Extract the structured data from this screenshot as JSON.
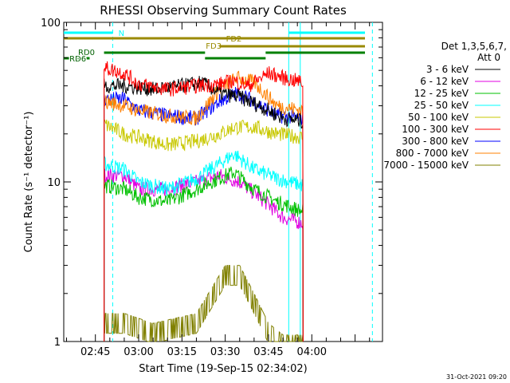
{
  "chart_data": {
    "type": "line",
    "title": "RHESSI Observing Summary Count Rates",
    "xlabel": "Start Time (19-Sep-15 02:34:02)",
    "ylabel": "Count Rate (s⁻¹ detector⁻¹)",
    "y_scale": "log",
    "ylim": [
      1,
      100
    ],
    "xlim": [
      "02:34:02",
      "04:24:30"
    ],
    "y_ticks": [
      {
        "value": 1,
        "label": "1"
      },
      {
        "value": 10,
        "label": "10"
      },
      {
        "value": 100,
        "label": "100"
      }
    ],
    "x_ticks": [
      {
        "time": "02:45",
        "label": "02:45"
      },
      {
        "time": "03:00",
        "label": "03:00"
      },
      {
        "time": "03:15",
        "label": "03:15"
      },
      {
        "time": "03:30",
        "label": "03:30"
      },
      {
        "time": "03:45",
        "label": "03:45"
      },
      {
        "time": "04:00",
        "label": "04:00"
      }
    ],
    "data_start": "02:48",
    "data_end": "03:57",
    "legend_header": [
      "Det 1,3,5,6,7,",
      "Att 0"
    ],
    "legend_position": "right",
    "series": [
      {
        "name": "3 - 6 keV",
        "color": "#000000",
        "points": [
          [
            "02:48",
            40
          ],
          [
            "02:55",
            40
          ],
          [
            "03:05",
            38
          ],
          [
            "03:15",
            40
          ],
          [
            "03:22",
            42
          ],
          [
            "03:28",
            36
          ],
          [
            "03:35",
            34
          ],
          [
            "03:42",
            30
          ],
          [
            "03:50",
            25
          ],
          [
            "03:57",
            24
          ]
        ]
      },
      {
        "name": "6 - 12 keV",
        "color": "#e000e0",
        "points": [
          [
            "02:48",
            11
          ],
          [
            "02:55",
            11
          ],
          [
            "03:00",
            9
          ],
          [
            "03:10",
            9
          ],
          [
            "03:20",
            10
          ],
          [
            "03:28",
            11
          ],
          [
            "03:35",
            10
          ],
          [
            "03:42",
            8
          ],
          [
            "03:50",
            6
          ],
          [
            "03:57",
            5.5
          ]
        ]
      },
      {
        "name": "12 - 25 keV",
        "color": "#00c000",
        "points": [
          [
            "02:48",
            9.5
          ],
          [
            "02:55",
            9
          ],
          [
            "03:00",
            8
          ],
          [
            "03:10",
            7.5
          ],
          [
            "03:20",
            9
          ],
          [
            "03:25",
            10
          ],
          [
            "03:33",
            11.5
          ],
          [
            "03:40",
            9
          ],
          [
            "03:48",
            7.5
          ],
          [
            "03:57",
            6.5
          ]
        ]
      },
      {
        "name": "25 - 50 keV",
        "color": "#00ffff",
        "points": [
          [
            "02:48",
            13
          ],
          [
            "02:55",
            12
          ],
          [
            "03:00",
            10
          ],
          [
            "03:10",
            9
          ],
          [
            "03:20",
            10.5
          ],
          [
            "03:28",
            13
          ],
          [
            "03:33",
            15
          ],
          [
            "03:40",
            12
          ],
          [
            "03:48",
            10.5
          ],
          [
            "03:57",
            9.5
          ]
        ]
      },
      {
        "name": "50 - 100 keV",
        "color": "#c8c800",
        "points": [
          [
            "02:48",
            23
          ],
          [
            "02:55",
            20
          ],
          [
            "03:00",
            19
          ],
          [
            "03:10",
            17
          ],
          [
            "03:20",
            18
          ],
          [
            "03:28",
            20
          ],
          [
            "03:33",
            22
          ],
          [
            "03:40",
            22
          ],
          [
            "03:48",
            20
          ],
          [
            "03:57",
            19
          ]
        ]
      },
      {
        "name": "100 - 300 keV",
        "color": "#ff0000",
        "points": [
          [
            "02:48",
            52
          ],
          [
            "02:55",
            48
          ],
          [
            "03:00",
            41
          ],
          [
            "03:10",
            38
          ],
          [
            "03:20",
            40
          ],
          [
            "03:28",
            41
          ],
          [
            "03:33",
            43
          ],
          [
            "03:38",
            40
          ],
          [
            "03:45",
            48
          ],
          [
            "03:50",
            45
          ],
          [
            "03:57",
            42
          ]
        ]
      },
      {
        "name": "300 - 800 keV",
        "color": "#0000ff",
        "points": [
          [
            "02:48",
            33
          ],
          [
            "02:55",
            33
          ],
          [
            "03:00",
            28
          ],
          [
            "03:10",
            26
          ],
          [
            "03:20",
            25
          ],
          [
            "03:28",
            32
          ],
          [
            "03:34",
            36
          ],
          [
            "03:40",
            32
          ],
          [
            "03:48",
            26
          ],
          [
            "03:57",
            25
          ]
        ]
      },
      {
        "name": "800 - 7000 keV",
        "color": "#ff8000",
        "points": [
          [
            "02:48",
            32
          ],
          [
            "02:55",
            30
          ],
          [
            "03:00",
            28
          ],
          [
            "03:10",
            26
          ],
          [
            "03:20",
            25
          ],
          [
            "03:28",
            38
          ],
          [
            "03:34",
            45
          ],
          [
            "03:40",
            42
          ],
          [
            "03:48",
            30
          ],
          [
            "03:57",
            28
          ]
        ]
      },
      {
        "name": "7000 - 15000 keV",
        "color": "#808000",
        "points": [
          [
            "02:48",
            1.5
          ],
          [
            "02:55",
            1.5
          ],
          [
            "03:05",
            1.3
          ],
          [
            "03:20",
            1.5
          ],
          [
            "03:30",
            3
          ],
          [
            "03:35",
            3
          ],
          [
            "03:40",
            2
          ],
          [
            "03:45",
            1.3
          ],
          [
            "03:50",
            1.1
          ],
          [
            "03:57",
            1.1
          ]
        ]
      }
    ],
    "state_bars": [
      {
        "label": "N",
        "color": "#00ffff",
        "intervals": [
          [
            "02:34:02",
            "02:51"
          ],
          [
            "03:52",
            "04:24:30"
          ]
        ]
      },
      {
        "label": "FD2",
        "color": "#9a8a00",
        "intervals": [
          [
            "02:34:02",
            "04:24:30"
          ]
        ]
      },
      {
        "label": "FD3",
        "color": "#9a8a00",
        "intervals": [
          [
            "03:28",
            "04:24:30"
          ]
        ]
      },
      {
        "label": "RD0",
        "color": "#008000",
        "intervals": [
          [
            "02:48",
            "03:23"
          ],
          [
            "03:44",
            "04:24:30"
          ]
        ]
      },
      {
        "label": "RD6",
        "color": "#008000",
        "intervals": [
          [
            "02:34:02",
            "02:43"
          ],
          [
            "03:23",
            "03:44"
          ]
        ]
      }
    ],
    "vertical_markers": [
      {
        "time": "02:51",
        "color": "#00ffff",
        "style": "dashed"
      },
      {
        "time": "03:52",
        "color": "#00ffff",
        "style": "solid"
      },
      {
        "time": "03:56",
        "color": "#00ffff",
        "style": "solid"
      },
      {
        "time": "04:21",
        "color": "#00ffff",
        "style": "dashed"
      }
    ],
    "timestamp": "31-Oct-2021 09:20"
  }
}
